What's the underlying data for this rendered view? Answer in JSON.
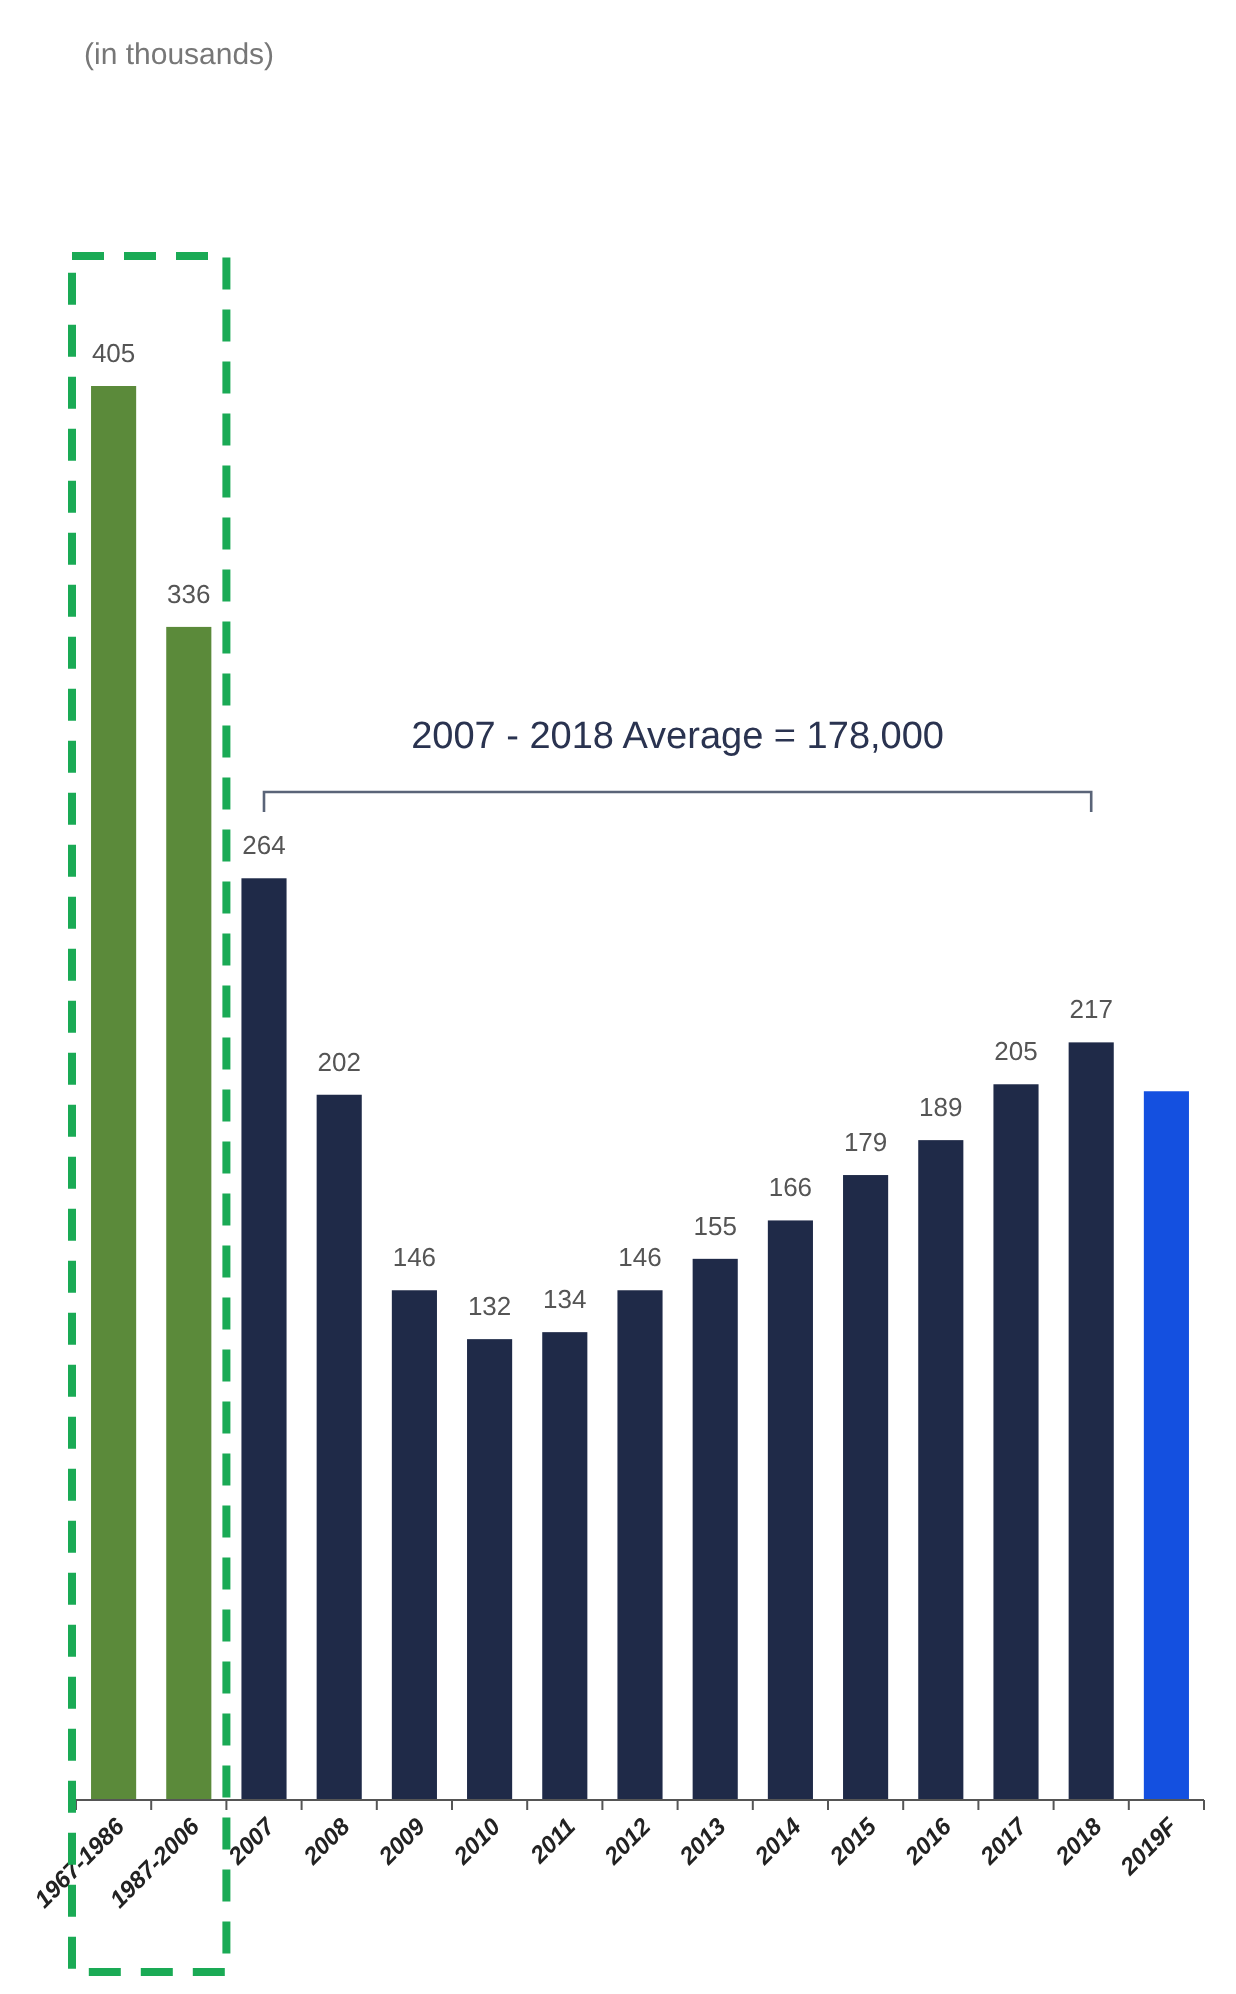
{
  "chart_data": {
    "type": "bar",
    "subtitle": "(in thousands)",
    "categories": [
      "1967-1986",
      "1987-2006",
      "2007",
      "2008",
      "2009",
      "2010",
      "2011",
      "2012",
      "2013",
      "2014",
      "2015",
      "2016",
      "2017",
      "2018",
      "2019F"
    ],
    "values": [
      405,
      336,
      264,
      202,
      146,
      132,
      134,
      146,
      155,
      166,
      179,
      189,
      205,
      217,
      203
    ],
    "colors": [
      "#5b8a3a",
      "#5b8a3a",
      "#1f2a48",
      "#1f2a48",
      "#1f2a48",
      "#1f2a48",
      "#1f2a48",
      "#1f2a48",
      "#1f2a48",
      "#1f2a48",
      "#1f2a48",
      "#1f2a48",
      "#1f2a48",
      "#1f2a48",
      "#1450e0"
    ],
    "value_labels": [
      "405",
      "336",
      "264",
      "202",
      "146",
      "132",
      "134",
      "146",
      "155",
      "166",
      "179",
      "189",
      "205",
      "217",
      null
    ],
    "annotations": [
      "2007 - 2018 Average = 178,000"
    ]
  }
}
